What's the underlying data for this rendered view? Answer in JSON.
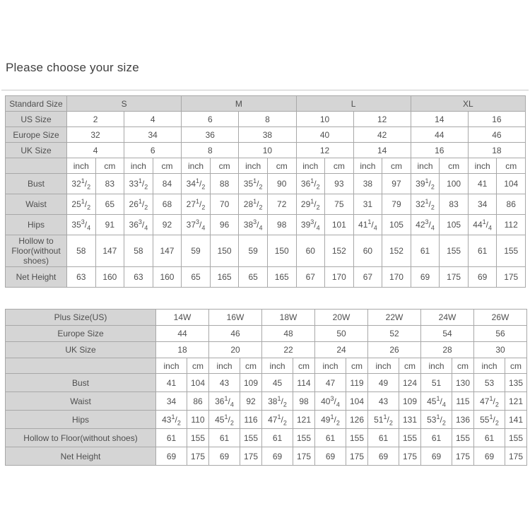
{
  "page": {
    "title": "Please choose your size"
  },
  "colors": {
    "header_bg": "#d5d5d5",
    "border": "#a8a8a8",
    "text": "#4f4f4f",
    "title": "#3f3f3f",
    "rule": "#c9c9c9",
    "page_bg": "#ffffff"
  },
  "size_tables": [
    {
      "id": "standard",
      "name": "standard-size-table",
      "unit_pairs": 8,
      "group_row_shaded": true,
      "header_rows": [
        {
          "label": "Standard Size",
          "span": 4,
          "values": [
            "S",
            "M",
            "L",
            "XL"
          ]
        },
        {
          "label": "US Size",
          "span": 2,
          "values": [
            "2",
            "4",
            "6",
            "8",
            "10",
            "12",
            "14",
            "16"
          ]
        },
        {
          "label": "Europe Size",
          "span": 2,
          "values": [
            "32",
            "34",
            "36",
            "38",
            "40",
            "42",
            "44",
            "46"
          ]
        },
        {
          "label": "UK Size",
          "span": 2,
          "values": [
            "4",
            "6",
            "8",
            "10",
            "12",
            "14",
            "16",
            "18"
          ]
        }
      ],
      "unit_labels": [
        "inch",
        "cm"
      ],
      "measurement_rows": [
        {
          "label": "Bust",
          "values": [
            "32 1/2",
            "83",
            "33 1/2",
            "84",
            "34 1/2",
            "88",
            "35 1/2",
            "90",
            "36 1/2",
            "93",
            "38",
            "97",
            "39 1/2",
            "100",
            "41",
            "104"
          ]
        },
        {
          "label": "Waist",
          "values": [
            "25 1/2",
            "65",
            "26 1/2",
            "68",
            "27 1/2",
            "70",
            "28 1/2",
            "72",
            "29 1/2",
            "75",
            "31",
            "79",
            "32 1/2",
            "83",
            "34",
            "86"
          ]
        },
        {
          "label": "Hips",
          "values": [
            "35 3/4",
            "91",
            "36 3/4",
            "92",
            "37 3/4",
            "96",
            "38 3/4",
            "98",
            "39 3/4",
            "101",
            "41 1/4",
            "105",
            "42 3/4",
            "105",
            "44 1/4",
            "112"
          ]
        },
        {
          "label": "Hollow to Floor(without shoes)",
          "values": [
            "58",
            "147",
            "58",
            "147",
            "59",
            "150",
            "59",
            "150",
            "60",
            "152",
            "60",
            "152",
            "61",
            "155",
            "61",
            "155"
          ]
        },
        {
          "label": "Net Height",
          "values": [
            "63",
            "160",
            "63",
            "160",
            "65",
            "165",
            "65",
            "165",
            "67",
            "170",
            "67",
            "170",
            "69",
            "175",
            "69",
            "175"
          ]
        }
      ]
    },
    {
      "id": "plus",
      "name": "plus-size-table",
      "unit_pairs": 7,
      "group_row_shaded": false,
      "header_rows": [
        {
          "label": "Plus Size(US)",
          "span": 2,
          "values": [
            "14W",
            "16W",
            "18W",
            "20W",
            "22W",
            "24W",
            "26W"
          ]
        },
        {
          "label": "Europe Size",
          "span": 2,
          "values": [
            "44",
            "46",
            "48",
            "50",
            "52",
            "54",
            "56"
          ]
        },
        {
          "label": "UK Size",
          "span": 2,
          "values": [
            "18",
            "20",
            "22",
            "24",
            "26",
            "28",
            "30"
          ]
        }
      ],
      "unit_labels": [
        "inch",
        "cm"
      ],
      "measurement_rows": [
        {
          "label": "Bust",
          "values": [
            "41",
            "104",
            "43",
            "109",
            "45",
            "114",
            "47",
            "119",
            "49",
            "124",
            "51",
            "130",
            "53",
            "135"
          ]
        },
        {
          "label": "Waist",
          "values": [
            "34",
            "86",
            "36 1/4",
            "92",
            "38 1/2",
            "98",
            "40 3/4",
            "104",
            "43",
            "109",
            "45 1/4",
            "115",
            "47 1/2",
            "121"
          ]
        },
        {
          "label": "Hips",
          "values": [
            "43 1/2",
            "110",
            "45 1/2",
            "116",
            "47 1/2",
            "121",
            "49 1/2",
            "126",
            "51 1/2",
            "131",
            "53 1/2",
            "136",
            "55 1/2",
            "141"
          ]
        },
        {
          "label": "Hollow to Floor(without shoes)",
          "values": [
            "61",
            "155",
            "61",
            "155",
            "61",
            "155",
            "61",
            "155",
            "61",
            "155",
            "61",
            "155",
            "61",
            "155"
          ]
        },
        {
          "label": "Net Height",
          "values": [
            "69",
            "175",
            "69",
            "175",
            "69",
            "175",
            "69",
            "175",
            "69",
            "175",
            "69",
            "175",
            "69",
            "175"
          ]
        }
      ]
    }
  ]
}
